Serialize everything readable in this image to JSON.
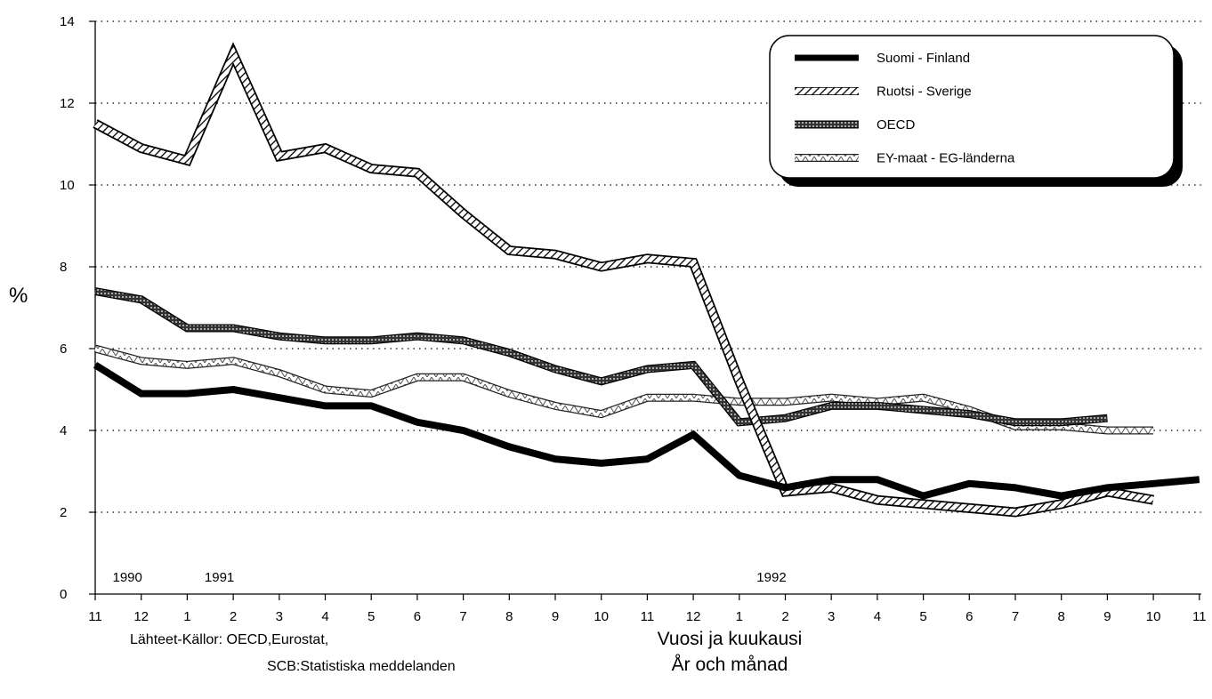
{
  "chart_data": {
    "type": "line",
    "ylabel": "%",
    "ylim": [
      0,
      14
    ],
    "yticks": [
      "0",
      "2",
      "4",
      "6",
      "8",
      "10",
      "12",
      "14"
    ],
    "grid": "horizontal dotted",
    "x_tick_labels": [
      "11",
      "12",
      "1",
      "2",
      "3",
      "4",
      "5",
      "6",
      "7",
      "8",
      "9",
      "10",
      "11",
      "12",
      "1",
      "2",
      "3",
      "4",
      "5",
      "6",
      "7",
      "8",
      "9",
      "10",
      "11"
    ],
    "year_labels": [
      {
        "text": "1990",
        "at_index": 0.7
      },
      {
        "text": "1991",
        "at_index": 2.7
      },
      {
        "text": "1992",
        "at_index": 14.7
      }
    ],
    "xlabel_line1": "Vuosi ja kuukausi",
    "xlabel_line2": "År och månad",
    "legend_position": "top-right",
    "series": [
      {
        "name": "Suomi - Finland",
        "style": "solid-thick",
        "values": [
          5.6,
          4.9,
          4.9,
          5.0,
          4.8,
          4.6,
          4.6,
          4.2,
          4.0,
          3.6,
          3.3,
          3.2,
          3.3,
          3.9,
          2.9,
          2.6,
          2.8,
          2.8,
          2.4,
          2.7,
          2.6,
          2.4,
          2.6,
          2.7,
          2.8
        ]
      },
      {
        "name": "Ruotsi - Sverige",
        "style": "hatched",
        "values": [
          11.5,
          10.9,
          10.6,
          13.2,
          10.7,
          10.9,
          10.4,
          10.3,
          9.3,
          8.4,
          8.3,
          8.0,
          8.2,
          8.1,
          5.2,
          2.5,
          2.6,
          2.3,
          2.2,
          2.1,
          2.0,
          2.2,
          2.5,
          2.3,
          null
        ]
      },
      {
        "name": "OECD",
        "style": "dotted-dark",
        "values": [
          7.4,
          7.2,
          6.5,
          6.5,
          6.3,
          6.2,
          6.2,
          6.3,
          6.2,
          5.9,
          5.5,
          5.2,
          5.5,
          5.6,
          4.2,
          4.3,
          4.6,
          4.6,
          4.5,
          4.4,
          4.2,
          4.2,
          4.3,
          null,
          null
        ]
      },
      {
        "name": "EY-maat - EG-länderna",
        "style": "triangle-light",
        "values": [
          6.0,
          5.7,
          5.6,
          5.7,
          5.4,
          5.0,
          4.9,
          5.3,
          5.3,
          4.9,
          4.6,
          4.4,
          4.8,
          4.8,
          4.7,
          4.7,
          4.8,
          4.7,
          4.8,
          4.5,
          4.1,
          4.1,
          4.0,
          4.0,
          null
        ]
      }
    ]
  },
  "source": {
    "line1": "Lähteet-Källor: OECD,Eurostat,",
    "line2": "SCB:Statistiska meddelanden"
  }
}
